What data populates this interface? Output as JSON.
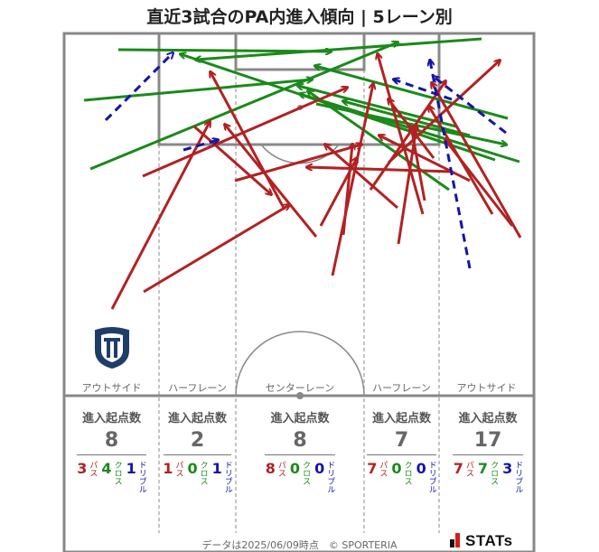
{
  "title": "直近3試合のPA内進入傾向 | 5レーン別",
  "lanes": [
    {
      "label": "アウトサイド",
      "stats_head": "進入起点数",
      "total": "8",
      "pass": "3",
      "cross": "4",
      "dribble": "1"
    },
    {
      "label": "ハーフレーン",
      "stats_head": "進入起点数",
      "total": "2",
      "pass": "1",
      "cross": "0",
      "dribble": "1"
    },
    {
      "label": "センターレーン",
      "stats_head": "進入起点数",
      "total": "8",
      "pass": "8",
      "cross": "0",
      "dribble": "0"
    },
    {
      "label": "ハーフレーン",
      "stats_head": "進入起点数",
      "total": "7",
      "pass": "7",
      "cross": "0",
      "dribble": "0"
    },
    {
      "label": "アウトサイド",
      "stats_head": "進入起点数",
      "total": "17",
      "pass": "7",
      "cross": "7",
      "dribble": "3"
    }
  ],
  "legend": {
    "pass": "パス",
    "cross": "クロス",
    "dribble": "ドリブル"
  },
  "colors": {
    "pass": "#b22222",
    "cross": "#1a8a1a",
    "dribble": "#1515a8"
  },
  "footer": "データは2025/06/09時点　© SPORTERIA",
  "brand": "STATs",
  "team_logo_icon": "team-crest-icon"
}
